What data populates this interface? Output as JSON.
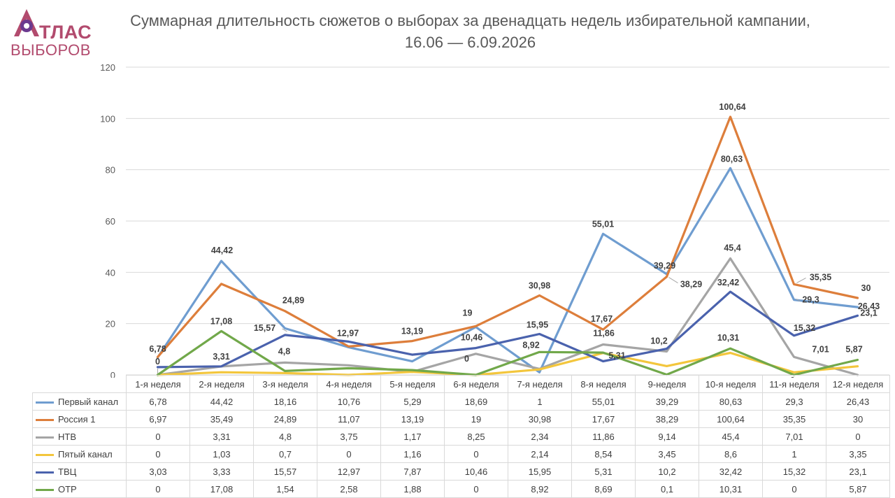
{
  "logo": {
    "line1": "ТЛАС",
    "line2": "ВЫБОРОВ",
    "color": "#b24b6e",
    "accent": "#6b3a8f"
  },
  "chart_data": {
    "type": "line",
    "title": "Суммарная длительность сюжетов о выборах за двенадцать недель избирательной кампании, 16.06 — 6.09.2026",
    "categories": [
      "1-я неделя",
      "2-я неделя",
      "3-я неделя",
      "4-я неделя",
      "5-я неделя",
      "6-я неделя",
      "7-я неделя",
      "8-я неделя",
      "9-неделя",
      "10-я неделя",
      "11-я неделя",
      "12-я неделя"
    ],
    "ylim": [
      0,
      120
    ],
    "yticks": [
      "0",
      "20",
      "40",
      "60",
      "80",
      "100",
      "120"
    ],
    "grid": true,
    "legend": "table",
    "series": [
      {
        "name": "Первый канал",
        "color": "#6f9dd0",
        "values": [
          6.78,
          44.42,
          18.16,
          10.76,
          5.29,
          18.69,
          1,
          55.01,
          39.29,
          80.63,
          29.3,
          26.43
        ],
        "table_values": [
          "6,78",
          "44,42",
          "18,16",
          "10,76",
          "5,29",
          "18,69",
          "1",
          "55,01",
          "39,29",
          "80,63",
          "29,3",
          "26,43"
        ]
      },
      {
        "name": "Россия 1",
        "color": "#dd7e3b",
        "values": [
          6.97,
          35.49,
          24.89,
          11.07,
          13.19,
          19,
          30.98,
          17.67,
          38.29,
          100.64,
          35.35,
          30
        ],
        "table_values": [
          "6,97",
          "35,49",
          "24,89",
          "11,07",
          "13,19",
          "19",
          "30,98",
          "17,67",
          "38,29",
          "100,64",
          "35,35",
          "30"
        ]
      },
      {
        "name": "НТВ",
        "color": "#a5a5a5",
        "values": [
          0,
          3.31,
          4.8,
          3.75,
          1.17,
          8.25,
          2.34,
          11.86,
          9.14,
          45.4,
          7.01,
          0
        ],
        "table_values": [
          "0",
          "3,31",
          "4,8",
          "3,75",
          "1,17",
          "8,25",
          "2,34",
          "11,86",
          "9,14",
          "45,4",
          "7,01",
          "0"
        ]
      },
      {
        "name": "Пятый канал",
        "color": "#f3c63c",
        "values": [
          0,
          1.03,
          0.7,
          0,
          1.16,
          0,
          2.14,
          8.54,
          3.45,
          8.6,
          1,
          3.35
        ],
        "table_values": [
          "0",
          "1,03",
          "0,7",
          "0",
          "1,16",
          "0",
          "2,14",
          "8,54",
          "3,45",
          "8,6",
          "1",
          "3,35"
        ]
      },
      {
        "name": "ТВЦ",
        "color": "#4a62ad",
        "values": [
          3.03,
          3.33,
          15.57,
          12.97,
          7.87,
          10.46,
          15.95,
          5.31,
          10.2,
          32.42,
          15.32,
          23.1
        ],
        "table_values": [
          "3,03",
          "3,33",
          "15,57",
          "12,97",
          "7,87",
          "10,46",
          "15,95",
          "5,31",
          "10,2",
          "32,42",
          "15,32",
          "23,1"
        ]
      },
      {
        "name": "ОТР",
        "color": "#71a84a",
        "values": [
          0,
          17.08,
          1.54,
          2.58,
          1.88,
          0,
          8.92,
          8.69,
          0.1,
          10.31,
          0,
          5.87
        ],
        "table_values": [
          "0",
          "17,08",
          "1,54",
          "2,58",
          "1,88",
          "0",
          "8,92",
          "8,69",
          "0,1",
          "10,31",
          "0",
          "5,87"
        ]
      }
    ],
    "data_labels": [
      {
        "text": "6,78",
        "series": 0,
        "point": 0
      },
      {
        "text": "0",
        "series": 2,
        "point": 0
      },
      {
        "text": "44,42",
        "series": 0,
        "point": 1
      },
      {
        "text": "17,08",
        "series": 5,
        "point": 1
      },
      {
        "text": "3,31",
        "series": 2,
        "point": 1
      },
      {
        "text": "24,89",
        "series": 1,
        "point": 2
      },
      {
        "text": "15,57",
        "series": 4,
        "point": 2
      },
      {
        "text": "4,8",
        "series": 2,
        "point": 2
      },
      {
        "text": "12,97",
        "series": 4,
        "point": 3
      },
      {
        "text": "13,19",
        "series": 1,
        "point": 4
      },
      {
        "text": "19",
        "series": 1,
        "point": 5
      },
      {
        "text": "10,46",
        "series": 4,
        "point": 5
      },
      {
        "text": "0",
        "series": 5,
        "point": 5
      },
      {
        "text": "30,98",
        "series": 1,
        "point": 6
      },
      {
        "text": "15,95",
        "series": 4,
        "point": 6
      },
      {
        "text": "8,92",
        "series": 5,
        "point": 6
      },
      {
        "text": "55,01",
        "series": 0,
        "point": 7
      },
      {
        "text": "17,67",
        "series": 1,
        "point": 7
      },
      {
        "text": "11,86",
        "series": 2,
        "point": 7
      },
      {
        "text": "5,31",
        "series": 4,
        "point": 7
      },
      {
        "text": "39,29",
        "series": 0,
        "point": 8
      },
      {
        "text": "38,29",
        "series": 1,
        "point": 8
      },
      {
        "text": "10,2",
        "series": 4,
        "point": 8
      },
      {
        "text": "100,64",
        "series": 1,
        "point": 9
      },
      {
        "text": "80,63",
        "series": 0,
        "point": 9
      },
      {
        "text": "45,4",
        "series": 2,
        "point": 9
      },
      {
        "text": "32,42",
        "series": 4,
        "point": 9
      },
      {
        "text": "10,31",
        "series": 5,
        "point": 9
      },
      {
        "text": "35,35",
        "series": 1,
        "point": 10
      },
      {
        "text": "29,3",
        "series": 0,
        "point": 10
      },
      {
        "text": "15,32",
        "series": 4,
        "point": 10
      },
      {
        "text": "7,01",
        "series": 2,
        "point": 10
      },
      {
        "text": "0",
        "series": 5,
        "point": 10
      },
      {
        "text": "30",
        "series": 1,
        "point": 11
      },
      {
        "text": "26,43",
        "series": 0,
        "point": 11
      },
      {
        "text": "23,1",
        "series": 4,
        "point": 11
      },
      {
        "text": "5,87",
        "series": 5,
        "point": 11
      }
    ]
  }
}
